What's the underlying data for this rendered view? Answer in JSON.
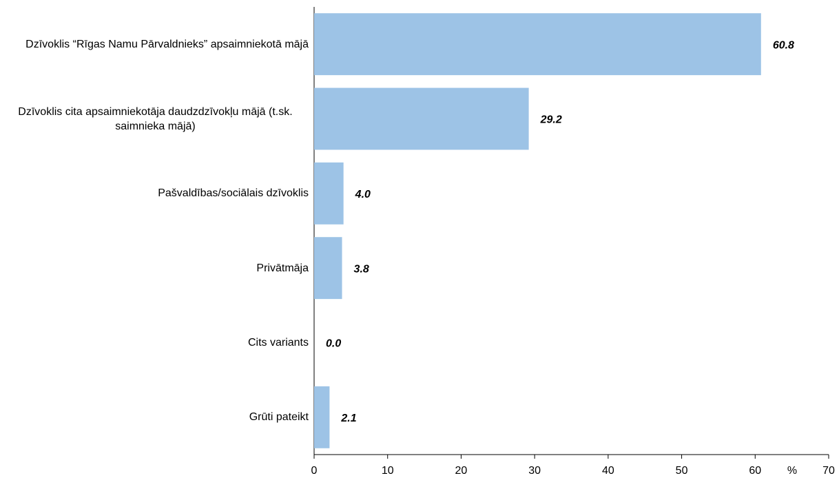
{
  "chart_data": {
    "type": "barh",
    "categories": [
      "Dzīvoklis “Rīgas Namu Pārvaldnieks” apsaimniekotā mājā",
      "Dzīvoklis cita apsaimniekotāja daudzdzīvokļu mājā (t.sk. saimnieka mājā)",
      "Pašvaldības/sociālais dzīvoklis",
      "Privātmāja",
      "Cits variants",
      "Grūti pateikt"
    ],
    "values": [
      60.8,
      29.2,
      4.0,
      3.8,
      0.0,
      2.1
    ],
    "value_labels": [
      "60.8",
      "29.2",
      "4.0",
      "3.8",
      "0.0",
      "2.1"
    ],
    "color": "#9dc3e6",
    "xlabel": "%",
    "xlim": [
      0,
      70
    ],
    "xticks": [
      0,
      10,
      20,
      30,
      40,
      50,
      60,
      70
    ]
  }
}
